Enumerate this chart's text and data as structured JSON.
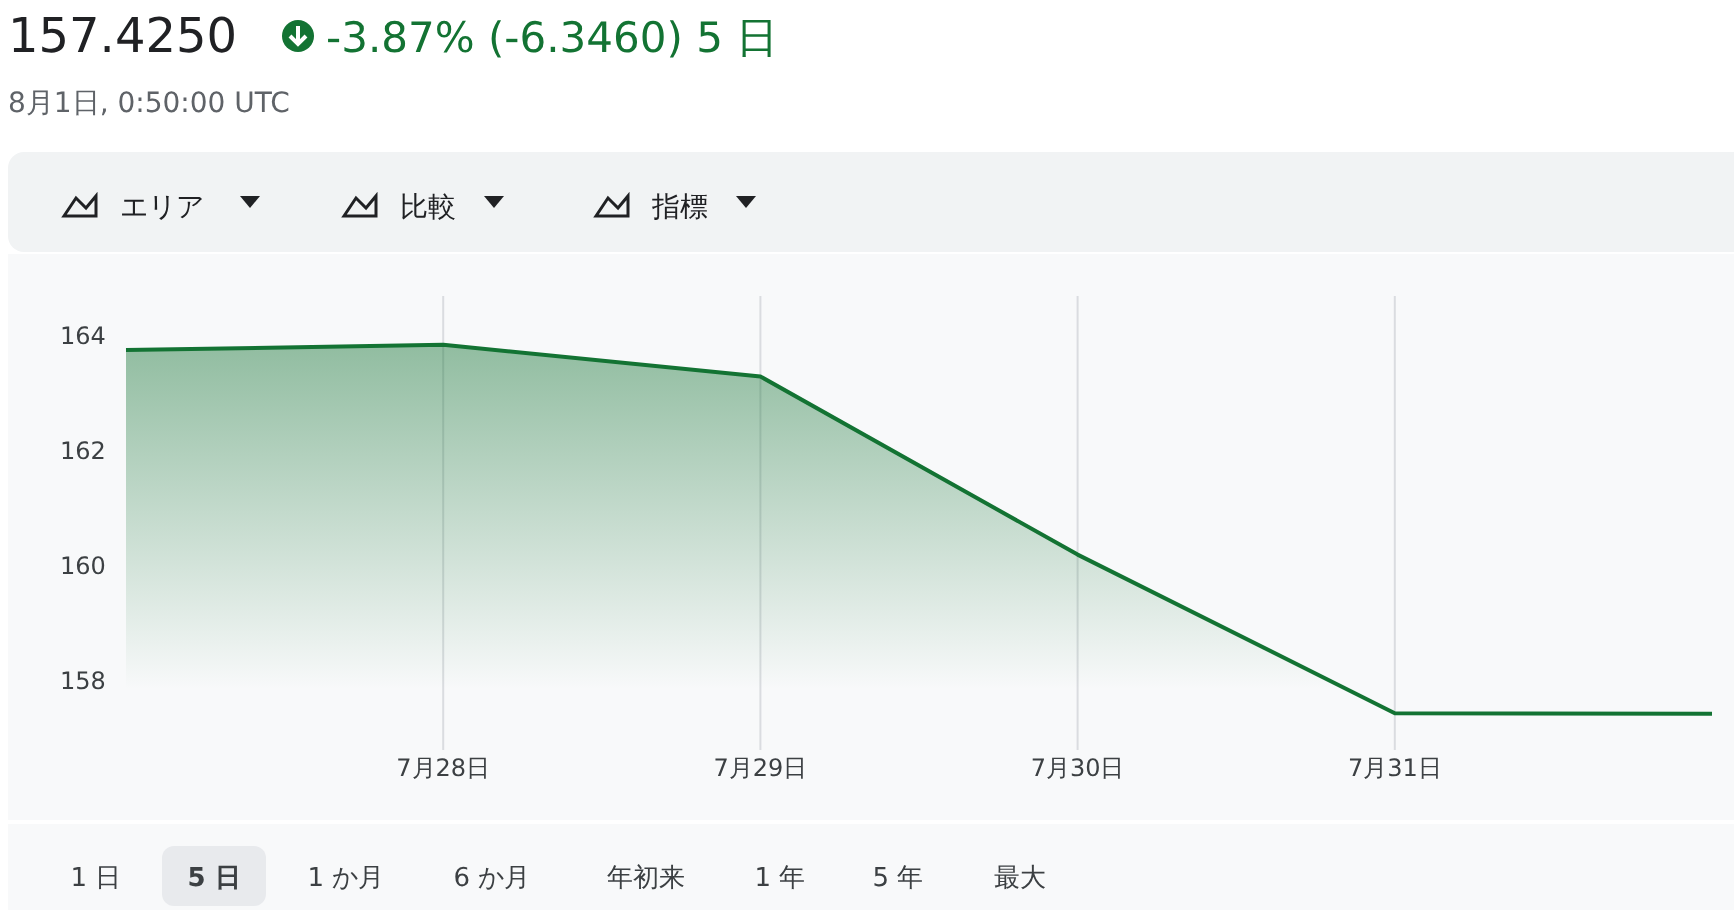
{
  "chart_data": {
    "type": "area",
    "title": "157.4250",
    "subtitle": "-3.87% (-6.3460) 5 日",
    "annotations": [
      "8月1日, 0:50:00 UTC",
      "エリア",
      "比較",
      "指標",
      "1 日",
      "5 日",
      "1 か月",
      "6 か月",
      "年初来",
      "1 年",
      "5 年",
      "最大"
    ],
    "categories": [
      null,
      "7月28日",
      "7月29日",
      "7月30日",
      "7月31日",
      null
    ],
    "series": [
      {
        "color": "#137333",
        "values": [
          163.76,
          163.85,
          163.3,
          160.2,
          157.44,
          157.43
        ]
      }
    ],
    "ylim": [
      156.8,
      164.7
    ],
    "yticks": [
      158,
      160,
      162,
      164
    ],
    "grid": "x"
  }
}
